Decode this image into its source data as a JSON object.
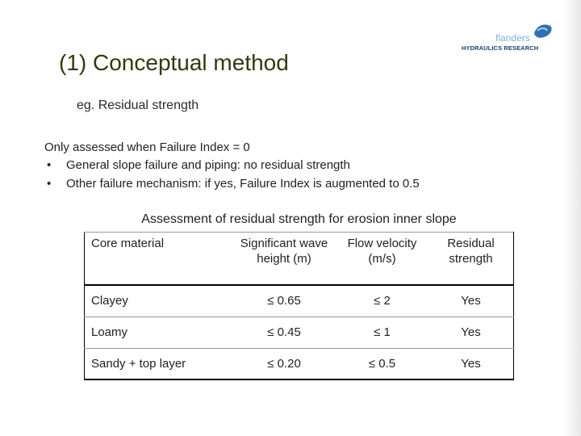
{
  "header": {
    "logo": {
      "name": "flanders",
      "subtitle": "HYDRAULICS RESEARCH"
    },
    "title": "(1) Conceptual method",
    "subtitle": "eg. Residual strength"
  },
  "body": {
    "intro": "Only assessed when Failure Index = 0",
    "bullets": [
      "General slope failure and piping: no residual strength",
      "Other failure mechanism: if yes, Failure Index is augmented to 0.5"
    ]
  },
  "table": {
    "caption": "Assessment of residual strength for erosion inner slope",
    "columns": [
      "Core material",
      "Significant wave height (m)",
      "Flow velocity (m/s)",
      "Residual strength"
    ],
    "rows": [
      [
        "Clayey",
        "≤ 0.65",
        "≤ 2",
        "Yes"
      ],
      [
        "Loamy",
        "≤ 0.45",
        "≤ 1",
        "Yes"
      ],
      [
        "Sandy + top layer",
        "≤ 0.20",
        "≤ 0.5",
        "Yes"
      ]
    ]
  }
}
